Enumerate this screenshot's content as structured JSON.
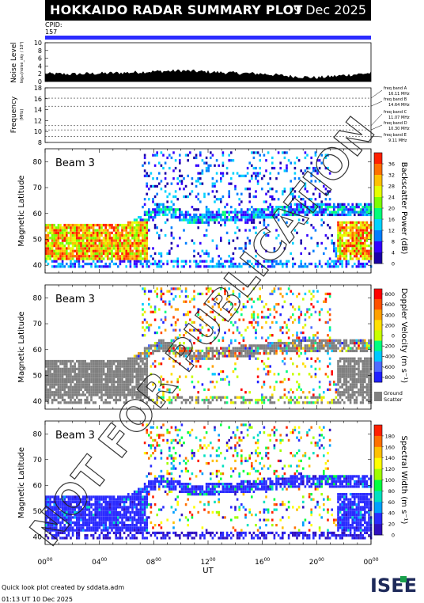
{
  "header": {
    "title": "HOKKAIDO RADAR SUMMARY PLOT",
    "date": "9 Dec 2025",
    "cpid_label": "CPID:",
    "cpid_value": "157"
  },
  "watermark": "NOT FOR PUBLICATION",
  "footer": {
    "line1": "Quick look plot created by sddata.adm",
    "line2": "01:13 UT 10 Dec 2025",
    "logo": "ISEE"
  },
  "chart_data": [
    {
      "type": "area",
      "panel": "noise",
      "ylabel": "Noise Level",
      "ylabel_sub": "log₁₀(noise_sky / 10⁴)",
      "ylim": [
        0,
        10
      ],
      "yticks": [
        "0",
        "2",
        "4",
        "6",
        "8",
        "10"
      ],
      "x": [
        0,
        2,
        4,
        6,
        8,
        10,
        12,
        14,
        16,
        18,
        20,
        22,
        24
      ],
      "values": [
        2.0,
        1.9,
        2.1,
        2.3,
        2.6,
        2.8,
        2.5,
        2.2,
        2.0,
        1.4,
        1.0,
        1.6,
        2.2
      ]
    },
    {
      "type": "line",
      "panel": "frequency",
      "ylabel": "Frequency",
      "ylabel_sub": "(MHz)",
      "ylim": [
        8,
        18
      ],
      "yticks": [
        "8",
        "10",
        "12",
        "14",
        "16",
        "18"
      ],
      "bands": [
        {
          "name": "freq band A",
          "value": "16.11 MHz",
          "mhz": 16.11
        },
        {
          "name": "freq band B",
          "value": "14.64 MHz",
          "mhz": 14.64
        },
        {
          "name": "freq band C",
          "value": "11.07 MHz",
          "mhz": 11.07
        },
        {
          "name": "freq band D",
          "value": "10.30 MHz",
          "mhz": 10.3
        },
        {
          "name": "freq band E",
          "value": "9.11 MHz",
          "mhz": 9.11
        }
      ]
    },
    {
      "type": "heatmap",
      "panel": "power",
      "label": "Beam  3",
      "ylabel": "Magnetic Latitude",
      "ylim": [
        37,
        85
      ],
      "yticks": [
        "40",
        "50",
        "60",
        "70",
        "80"
      ],
      "colorbar_label": "Backscatter Power (dB)",
      "colorbar_ticks": [
        "0",
        "4",
        "8",
        "12",
        "16",
        "20",
        "24",
        "28",
        "32",
        "36"
      ]
    },
    {
      "type": "heatmap",
      "panel": "velocity",
      "label": "Beam  3",
      "ylabel": "Magnetic Latitude",
      "ylim": [
        37,
        85
      ],
      "yticks": [
        "40",
        "50",
        "60",
        "70",
        "80"
      ],
      "colorbar_label": "Doppler Velocity (m s⁻¹)",
      "colorbar_ticks": [
        "800",
        "600",
        "400",
        "200",
        "0",
        "-200",
        "-400",
        "-600",
        "-800"
      ],
      "ground_label": "Ground",
      "ground_label2": "Scatter"
    },
    {
      "type": "heatmap",
      "panel": "width",
      "label": "Beam  3",
      "ylabel": "Magnetic Latitude",
      "ylim": [
        37,
        85
      ],
      "yticks": [
        "40",
        "50",
        "60",
        "70",
        "80"
      ],
      "colorbar_label": "Spectral Width (m s⁻¹)",
      "colorbar_ticks": [
        "0",
        "20",
        "40",
        "60",
        "80",
        "100",
        "120",
        "140",
        "160",
        "180"
      ]
    }
  ],
  "x_axis": {
    "label": "UT",
    "ticks": [
      {
        "h": "00",
        "m": "00"
      },
      {
        "h": "04",
        "m": "00"
      },
      {
        "h": "08",
        "m": "00"
      },
      {
        "h": "12",
        "m": "00"
      },
      {
        "h": "16",
        "m": "00"
      },
      {
        "h": "20",
        "m": "00"
      },
      {
        "h": "00",
        "m": "00"
      }
    ]
  },
  "colors": {
    "power_scale": [
      "#1a00a6",
      "#3300ff",
      "#007dff",
      "#00d2ff",
      "#00ff7a",
      "#7dff00",
      "#e6ff00",
      "#ffc000",
      "#ff7000",
      "#ff2000"
    ],
    "velocity_scale": [
      "#2020ff",
      "#4f6bff",
      "#00c8ff",
      "#00ff80",
      "#c8ff00",
      "#ffe000",
      "#ffa000",
      "#ff5000",
      "#ff0000"
    ],
    "width_scale": [
      "#3010c0",
      "#2b2bff",
      "#00a0ff",
      "#00e0c0",
      "#00ff40",
      "#a0ff00",
      "#ffff00",
      "#ffc000",
      "#ff7000",
      "#ff2000"
    ],
    "ground": "#808080",
    "title_bg": "#000000",
    "cpid_bar": "#2b2bff"
  }
}
